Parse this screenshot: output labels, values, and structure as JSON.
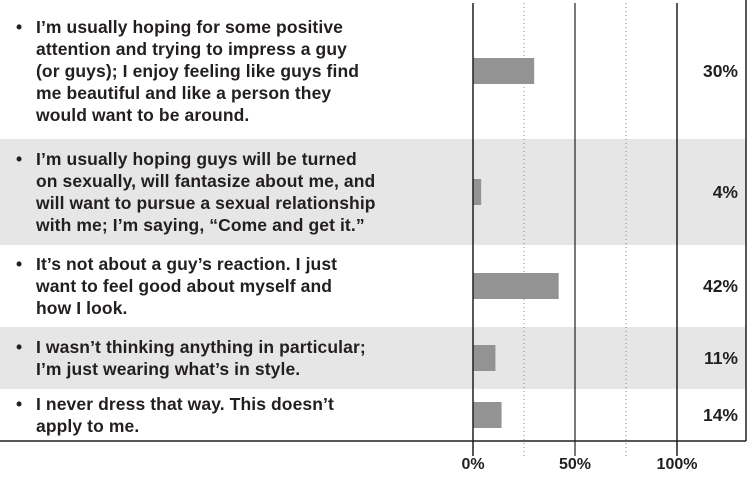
{
  "chart_data": {
    "type": "bar",
    "orientation": "horizontal",
    "categories": [
      "I’m usually hoping for some positive attention and trying to impress a guy (or guys); I enjoy feeling like guys find me beautiful and like a person they would want to be around.",
      "I’m usually hoping guys will be turned on sexually, will fantasize about me, and will want to pursue a sexual relationship with me; I’m saying, “Come and get it.”",
      "It’s not about a guy’s reaction. I just want to feel good about myself and how I look.",
      "I wasn’t thinking anything in particular; I’m just wearing what’s in style.",
      "I never dress that way. This doesn’t apply to me."
    ],
    "lines": [
      [
        "I’m usually hoping for some positive",
        "attention and trying to impress a guy",
        "(or guys); I enjoy feeling like guys find",
        "me beautiful and like a person they",
        "would want to be around."
      ],
      [
        "I’m usually hoping guys will be turned",
        "on sexually, will fantasize about me, and",
        "will want to pursue a sexual relationship",
        "with me; I’m saying, “Come and get it.”"
      ],
      [
        "It’s not about a guy’s reaction. I just",
        "want to feel good about myself and",
        "how I look."
      ],
      [
        "I wasn’t thinking anything in particular;",
        "I’m just wearing what’s in style."
      ],
      [
        "I never dress that way. This doesn’t",
        "apply to me."
      ]
    ],
    "values": [
      30,
      4,
      42,
      11,
      14
    ],
    "value_labels": [
      "30%",
      "4%",
      "42%",
      "11%",
      "14%"
    ],
    "bullet": "•",
    "xlim": [
      0,
      100
    ],
    "xticks": [
      0,
      50,
      100
    ],
    "xtick_labels": [
      "0%",
      "50%",
      "100%"
    ],
    "minor_gridlines": [
      25,
      75
    ],
    "colors": {
      "bar": "#939393",
      "row_shade": "#e6e6e6",
      "axis": "#231f20",
      "grid": "#888888"
    }
  }
}
